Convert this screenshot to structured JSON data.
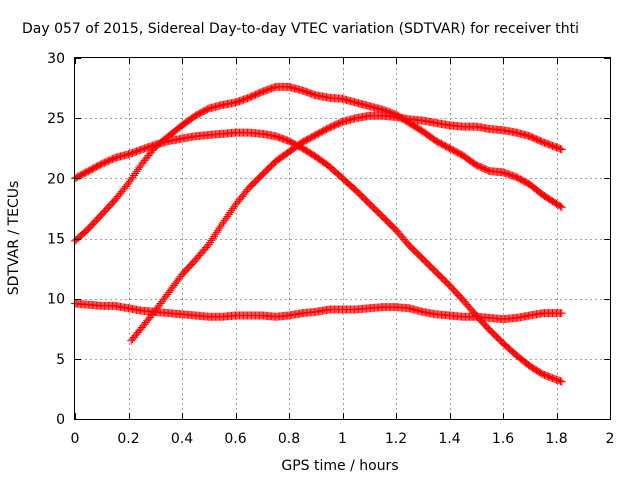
{
  "chart_data": {
    "type": "scatter",
    "title": "Day 057 of 2015, Sidereal Day-to-day VTEC variation (SDTVAR) for receiver thti",
    "xlabel": "GPS time / hours",
    "ylabel": "SDTVAR / TECUs",
    "xlim": [
      0,
      2
    ],
    "ylim": [
      0,
      30
    ],
    "xticks": [
      0,
      0.2,
      0.4,
      0.6,
      0.8,
      1,
      1.2,
      1.4,
      1.6,
      1.8,
      2
    ],
    "xtick_labels": [
      "0",
      "0.2",
      "0.4",
      "0.6",
      "0.8",
      "1",
      "1.2",
      "1.4",
      "1.6",
      "1.8",
      "2"
    ],
    "yticks": [
      0,
      5,
      10,
      15,
      20,
      25,
      30
    ],
    "ytick_labels": [
      "0",
      "5",
      "10",
      "15",
      "20",
      "25",
      "30"
    ],
    "grid": true,
    "marker": "+",
    "color": "#ff0000",
    "series": [
      {
        "name": "series-1",
        "x": [
          0,
          0.05,
          0.1,
          0.15,
          0.2,
          0.25,
          0.3,
          0.35,
          0.4,
          0.45,
          0.5,
          0.55,
          0.6,
          0.65,
          0.7,
          0.75,
          0.8,
          0.85,
          0.9,
          0.95,
          1.0,
          1.05,
          1.1,
          1.15,
          1.2,
          1.25,
          1.3,
          1.35,
          1.4,
          1.45,
          1.5,
          1.55,
          1.6,
          1.65,
          1.7,
          1.75,
          1.82
        ],
        "y": [
          20.0,
          20.6,
          21.2,
          21.7,
          22.0,
          22.4,
          22.8,
          23.1,
          23.3,
          23.5,
          23.6,
          23.7,
          23.8,
          23.8,
          23.7,
          23.5,
          23.1,
          22.5,
          21.8,
          21.0,
          20.0,
          19.0,
          17.9,
          16.8,
          15.7,
          14.4,
          13.3,
          12.2,
          11.1,
          9.9,
          8.6,
          7.4,
          6.3,
          5.3,
          4.4,
          3.7,
          3.1
        ]
      },
      {
        "name": "series-2",
        "x": [
          0,
          0.05,
          0.1,
          0.15,
          0.2,
          0.25,
          0.3,
          0.35,
          0.4,
          0.45,
          0.5,
          0.55,
          0.6,
          0.65,
          0.7,
          0.75,
          0.8,
          0.85,
          0.9,
          0.95,
          1.0,
          1.05,
          1.1,
          1.15,
          1.2,
          1.25,
          1.3,
          1.35,
          1.4,
          1.45,
          1.5,
          1.55,
          1.6,
          1.65,
          1.7,
          1.75,
          1.82
        ],
        "y": [
          14.8,
          15.8,
          17.0,
          18.2,
          19.6,
          21.2,
          22.6,
          23.5,
          24.4,
          25.2,
          25.8,
          26.1,
          26.3,
          26.7,
          27.2,
          27.6,
          27.6,
          27.3,
          26.9,
          26.7,
          26.6,
          26.3,
          26.0,
          25.7,
          25.3,
          24.6,
          23.9,
          23.1,
          22.5,
          21.9,
          21.1,
          20.6,
          20.5,
          20.1,
          19.5,
          18.6,
          17.6
        ]
      },
      {
        "name": "series-3",
        "x": [
          0.21,
          0.25,
          0.3,
          0.35,
          0.4,
          0.45,
          0.5,
          0.55,
          0.6,
          0.65,
          0.7,
          0.75,
          0.8,
          0.85,
          0.9,
          0.95,
          1.0,
          1.05,
          1.1,
          1.15,
          1.2,
          1.25,
          1.3,
          1.35,
          1.4,
          1.45,
          1.5,
          1.55,
          1.6,
          1.65,
          1.7,
          1.75,
          1.82
        ],
        "y": [
          6.5,
          7.6,
          9.0,
          10.5,
          12.0,
          13.2,
          14.5,
          16.2,
          17.8,
          19.2,
          20.3,
          21.4,
          22.2,
          23.0,
          23.6,
          24.2,
          24.7,
          25.0,
          25.2,
          25.2,
          25.1,
          24.9,
          24.8,
          24.6,
          24.4,
          24.3,
          24.3,
          24.1,
          24.0,
          23.8,
          23.5,
          23.0,
          22.4
        ]
      },
      {
        "name": "series-4",
        "x": [
          0,
          0.05,
          0.1,
          0.15,
          0.2,
          0.25,
          0.3,
          0.35,
          0.4,
          0.45,
          0.5,
          0.55,
          0.6,
          0.65,
          0.7,
          0.75,
          0.8,
          0.85,
          0.9,
          0.95,
          1.0,
          1.05,
          1.1,
          1.15,
          1.2,
          1.25,
          1.3,
          1.35,
          1.4,
          1.45,
          1.5,
          1.55,
          1.6,
          1.65,
          1.7,
          1.75,
          1.82
        ],
        "y": [
          9.6,
          9.5,
          9.4,
          9.4,
          9.2,
          9.0,
          8.9,
          8.8,
          8.7,
          8.6,
          8.5,
          8.5,
          8.6,
          8.6,
          8.6,
          8.5,
          8.6,
          8.8,
          8.9,
          9.1,
          9.1,
          9.1,
          9.2,
          9.3,
          9.3,
          9.2,
          8.9,
          8.7,
          8.6,
          8.5,
          8.5,
          8.4,
          8.3,
          8.4,
          8.6,
          8.8,
          8.8
        ]
      }
    ]
  }
}
